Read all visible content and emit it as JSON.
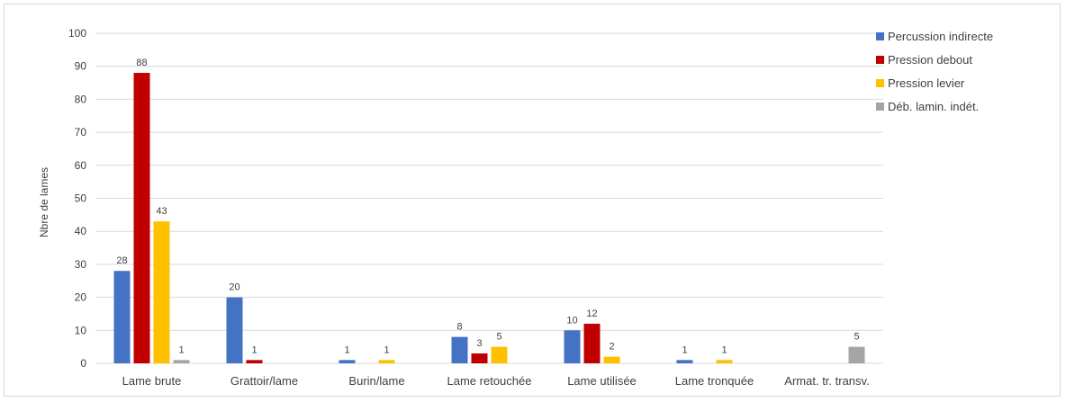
{
  "chart_data": {
    "type": "bar",
    "ylabel": "Nbre de lames",
    "xlabel": "",
    "ylim": [
      0,
      100
    ],
    "yticks": [
      0,
      10,
      20,
      30,
      40,
      50,
      60,
      70,
      80,
      90,
      100
    ],
    "grid": true,
    "legend_position": "top-right",
    "categories": [
      "Lame brute",
      "Grattoir/lame",
      "Burin/lame",
      "Lame retouchée",
      "Lame utilisée",
      "Lame tronquée",
      "Armat. tr. transv."
    ],
    "series": [
      {
        "name": "Percussion indirecte",
        "color": "#4472c4",
        "values": [
          28,
          20,
          1,
          8,
          10,
          1,
          null
        ]
      },
      {
        "name": "Pression debout",
        "color": "#c00000",
        "values": [
          88,
          1,
          null,
          3,
          12,
          null,
          null
        ]
      },
      {
        "name": "Pression levier",
        "color": "#ffc000",
        "values": [
          43,
          null,
          1,
          5,
          2,
          1,
          null
        ]
      },
      {
        "name": "Déb. lamin. indét.",
        "color": "#a5a5a5",
        "values": [
          1,
          null,
          null,
          null,
          null,
          null,
          5
        ]
      }
    ]
  }
}
